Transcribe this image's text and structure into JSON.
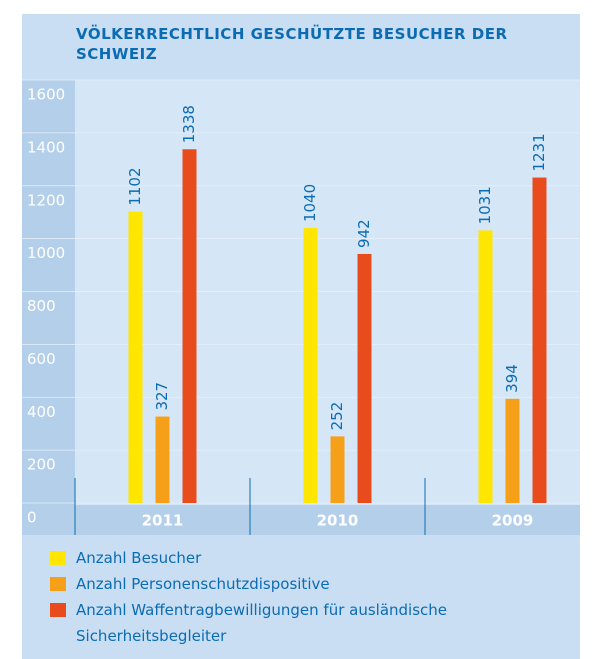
{
  "chart_data": {
    "type": "bar",
    "title": "VÖLKERRECHTLICH GESCHÜTZTE BESUCHER DER SCHWEIZ",
    "categories": [
      "2011",
      "2010",
      "2009"
    ],
    "series": [
      {
        "name": "Anzahl Besucher",
        "color": "#ffe600",
        "values": [
          1102,
          1040,
          1031
        ]
      },
      {
        "name": "Anzahl Personenschutzdispositive",
        "color": "#f6a01a",
        "values": [
          327,
          252,
          394
        ]
      },
      {
        "name": "Anzahl Waffentragbewilligungen für ausländische Sicherheitsbegleiter",
        "color": "#e84c1d",
        "values": [
          1338,
          942,
          1231
        ]
      }
    ],
    "ylim": [
      0,
      1600
    ],
    "yticks": [
      0,
      200,
      400,
      600,
      800,
      1000,
      1200,
      1400,
      1600
    ],
    "grid": true
  }
}
